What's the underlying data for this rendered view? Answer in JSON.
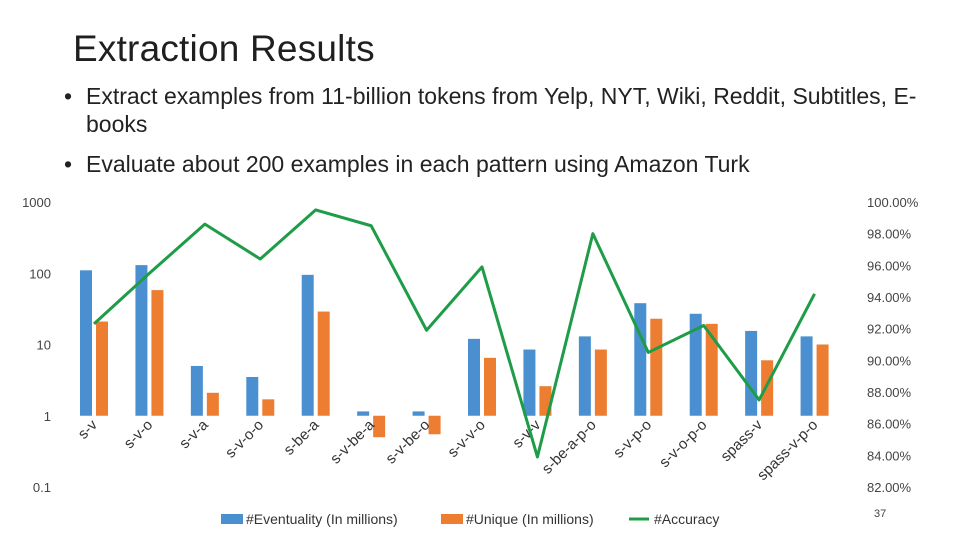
{
  "slide": {
    "title": "Extraction Results",
    "bullets": [
      "Extract examples from 11-billion tokens from Yelp, NYT, Wiki, Reddit, Subtitles, E-books",
      "Evaluate about 200 examples in each pattern using Amazon Turk"
    ],
    "page_number": "37"
  },
  "chart_data": {
    "type": "bar",
    "categories": [
      "s-v",
      "s-v-o",
      "s-v-a",
      "s-v-o-o",
      "s-be-a",
      "s-v-be-a",
      "s-v-be-o",
      "s-v-v-o",
      "s-v-v",
      "s-be-a-p-o",
      "s-v-p-o",
      "s-v-o-p-o",
      "spass-v",
      "spass-v-p-o"
    ],
    "series": [
      {
        "name": "#Eventuality (In millions)",
        "type": "bar",
        "axis": "left",
        "color": "#4a90d0",
        "values": [
          110,
          130,
          5,
          3.5,
          95,
          1.15,
          1.15,
          12,
          8.5,
          13,
          38,
          27,
          15.5,
          13
        ]
      },
      {
        "name": "#Unique (In millions)",
        "type": "bar",
        "axis": "left",
        "color": "#ed7d31",
        "values": [
          21,
          58,
          2.1,
          1.7,
          29,
          0.5,
          0.55,
          6.5,
          2.6,
          8.5,
          23,
          19.5,
          6,
          10
        ]
      },
      {
        "name": "#Accuracy",
        "type": "line",
        "axis": "right",
        "color": "#1e9c48",
        "values": [
          92.3,
          95.5,
          98.6,
          96.4,
          99.5,
          98.5,
          91.9,
          95.9,
          83.9,
          98.0,
          90.5,
          92.2,
          87.5,
          94.2
        ]
      }
    ],
    "y_left": {
      "scale": "log",
      "ylim": [
        0.1,
        1000
      ],
      "ticks": [
        "0.1",
        "1",
        "10",
        "100",
        "1000"
      ]
    },
    "y_right": {
      "ylim": [
        82,
        100
      ],
      "ticks": [
        "82.00%",
        "84.00%",
        "86.00%",
        "88.00%",
        "90.00%",
        "92.00%",
        "94.00%",
        "96.00%",
        "98.00%",
        "100.00%"
      ]
    },
    "grid": false,
    "legend": "bottom"
  }
}
